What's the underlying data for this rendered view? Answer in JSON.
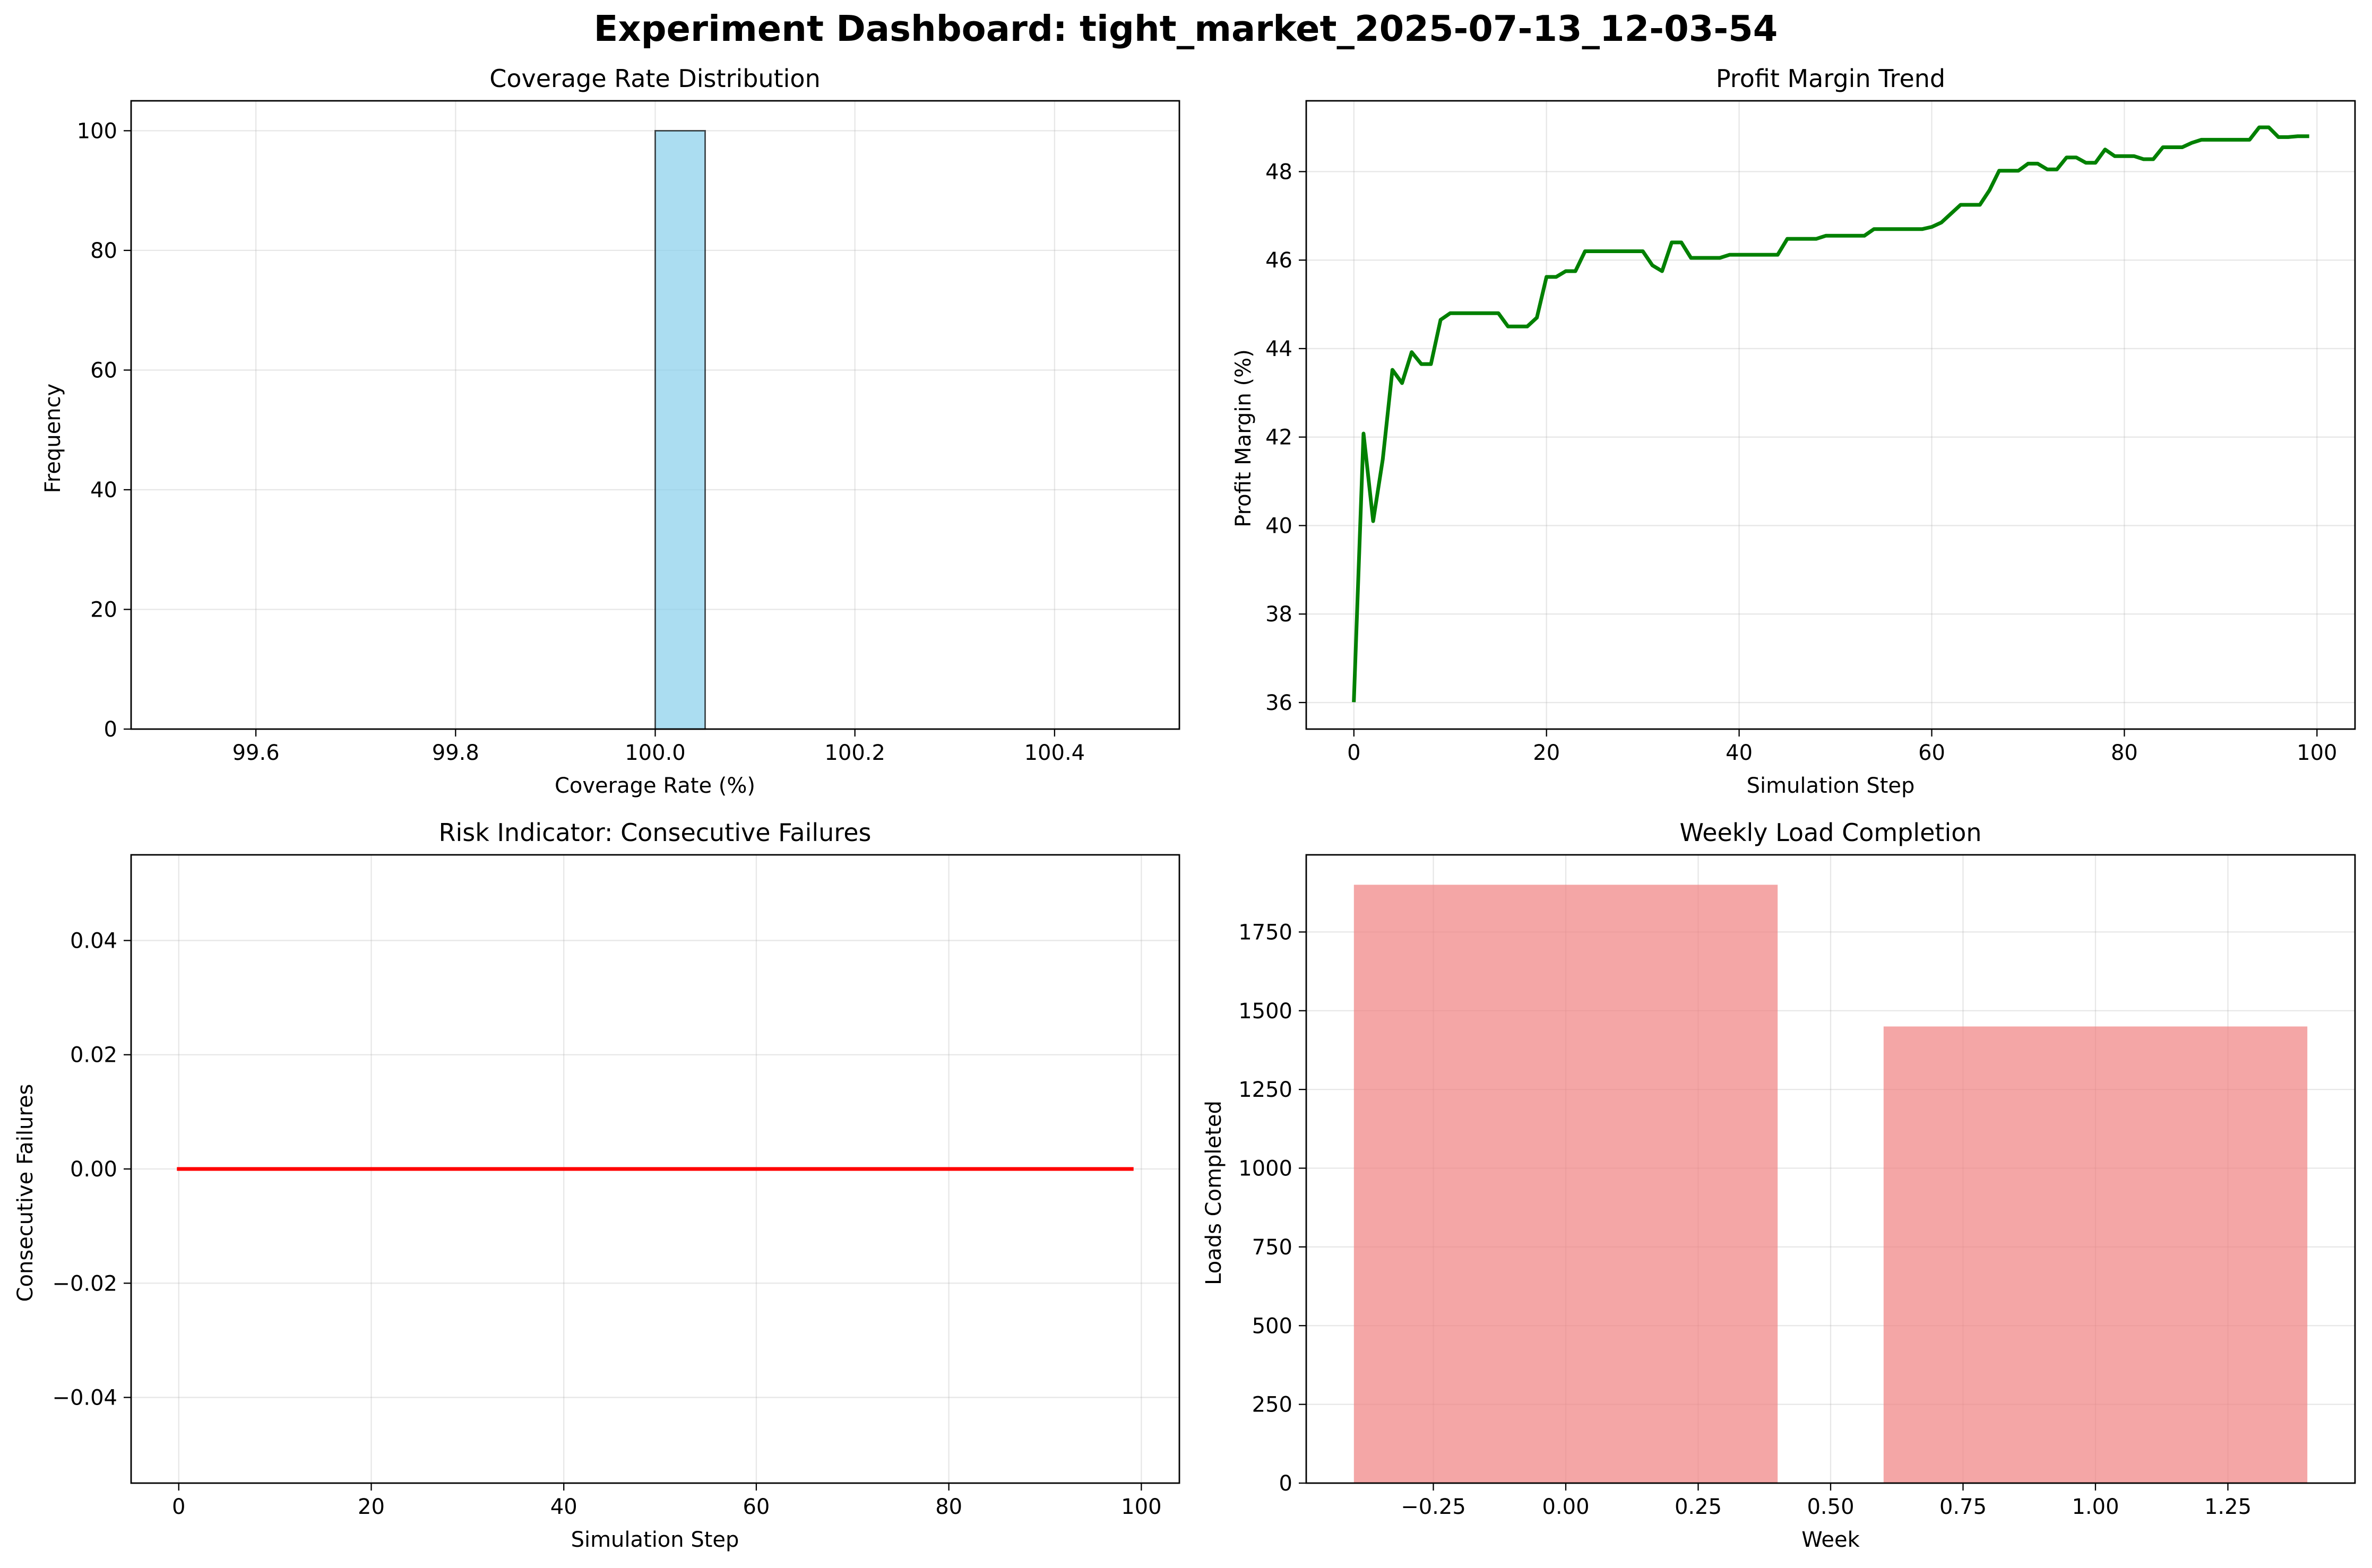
{
  "figure": {
    "title": "Experiment Dashboard: tight_market_2025-07-13_12-03-54"
  },
  "colors": {
    "histogram_fill": "#87ceeb",
    "histogram_edge": "#000000",
    "profit_line": "#008000",
    "risk_line": "#ff0000",
    "weekly_bars": "#f08080",
    "grid": "#b0b0b0"
  },
  "chart_data": [
    {
      "id": "coverage",
      "type": "bar",
      "title": "Coverage Rate Distribution",
      "xlabel": "Coverage Rate (%)",
      "ylabel": "Frequency",
      "xlim": [
        99.475,
        100.525
      ],
      "ylim": [
        0,
        105
      ],
      "grid": true,
      "xticks": [
        99.6,
        99.8,
        100.0,
        100.2,
        100.4
      ],
      "xtick_labels": [
        "99.6",
        "99.8",
        "100.0",
        "100.2",
        "100.4"
      ],
      "yticks": [
        0,
        20,
        40,
        60,
        80,
        100
      ],
      "ytick_labels": [
        "0",
        "20",
        "40",
        "60",
        "80",
        "100"
      ],
      "bin_range": [
        99.5,
        100.5
      ],
      "bin_count": 20,
      "bins": [
        {
          "x0": 100.0,
          "x1": 100.05,
          "count": 100
        }
      ],
      "color": "#87ceeb"
    },
    {
      "id": "profit",
      "type": "line",
      "title": "Profit Margin Trend",
      "xlabel": "Simulation Step",
      "ylabel": "Profit Margin (%)",
      "xlim": [
        -4.95,
        103.95
      ],
      "ylim": [
        35.4,
        49.6
      ],
      "grid": true,
      "xticks": [
        0,
        20,
        40,
        60,
        80,
        100
      ],
      "xtick_labels": [
        "0",
        "20",
        "40",
        "60",
        "80",
        "100"
      ],
      "yticks": [
        36,
        38,
        40,
        42,
        44,
        46,
        48
      ],
      "ytick_labels": [
        "36",
        "38",
        "40",
        "42",
        "44",
        "46",
        "48"
      ],
      "x": [
        0,
        1,
        2,
        3,
        4,
        5,
        6,
        7,
        8,
        9,
        10,
        11,
        12,
        13,
        14,
        15,
        16,
        17,
        18,
        19,
        20,
        21,
        22,
        23,
        24,
        25,
        26,
        27,
        28,
        29,
        30,
        31,
        32,
        33,
        34,
        35,
        36,
        37,
        38,
        39,
        40,
        41,
        42,
        43,
        44,
        45,
        46,
        47,
        48,
        49,
        50,
        51,
        52,
        53,
        54,
        55,
        56,
        57,
        58,
        59,
        60,
        61,
        62,
        63,
        64,
        65,
        66,
        67,
        68,
        69,
        70,
        71,
        72,
        73,
        74,
        75,
        76,
        77,
        78,
        79,
        80,
        81,
        82,
        83,
        84,
        85,
        86,
        87,
        88,
        89,
        90,
        91,
        92,
        93,
        94,
        95,
        96,
        97,
        98,
        99
      ],
      "y": [
        36.05,
        42.08,
        40.1,
        41.5,
        43.52,
        43.22,
        43.92,
        43.65,
        43.65,
        44.65,
        44.8,
        44.8,
        44.8,
        44.8,
        44.8,
        44.8,
        44.5,
        44.5,
        44.5,
        44.7,
        45.62,
        45.62,
        45.75,
        45.75,
        46.2,
        46.2,
        46.2,
        46.2,
        46.2,
        46.2,
        46.2,
        45.88,
        45.75,
        46.4,
        46.4,
        46.05,
        46.05,
        46.05,
        46.05,
        46.12,
        46.12,
        46.12,
        46.12,
        46.12,
        46.12,
        46.48,
        46.48,
        46.48,
        46.48,
        46.55,
        46.55,
        46.55,
        46.55,
        46.55,
        46.7,
        46.7,
        46.7,
        46.7,
        46.7,
        46.7,
        46.75,
        46.85,
        47.05,
        47.25,
        47.25,
        47.25,
        47.58,
        48.02,
        48.02,
        48.02,
        48.18,
        48.18,
        48.05,
        48.05,
        48.32,
        48.32,
        48.2,
        48.2,
        48.5,
        48.35,
        48.35,
        48.35,
        48.28,
        48.28,
        48.55,
        48.55,
        48.55,
        48.65,
        48.72,
        48.72,
        48.72,
        48.72,
        48.72,
        48.72,
        49.0,
        49.0,
        48.78,
        48.78,
        48.8,
        48.8
      ],
      "color": "#008000"
    },
    {
      "id": "risk",
      "type": "line",
      "title": "Risk Indicator: Consecutive Failures",
      "xlabel": "Simulation Step",
      "ylabel": "Consecutive Failures",
      "xlim": [
        -4.95,
        103.95
      ],
      "ylim": [
        -0.055,
        0.055
      ],
      "grid": true,
      "xticks": [
        0,
        20,
        40,
        60,
        80,
        100
      ],
      "xtick_labels": [
        "0",
        "20",
        "40",
        "60",
        "80",
        "100"
      ],
      "yticks": [
        -0.04,
        -0.02,
        0.0,
        0.02,
        0.04
      ],
      "ytick_labels": [
        "−0.04",
        "−0.02",
        "0.00",
        "0.02",
        "0.04"
      ],
      "x": [
        0,
        99
      ],
      "y": [
        0,
        0
      ],
      "color": "#ff0000"
    },
    {
      "id": "weekly",
      "type": "bar",
      "title": "Weekly Load Completion",
      "xlabel": "Week",
      "ylabel": "Loads Completed",
      "xlim": [
        -0.49,
        1.49
      ],
      "ylim": [
        0,
        1995
      ],
      "grid": true,
      "xticks": [
        -0.25,
        0.0,
        0.25,
        0.5,
        0.75,
        1.0,
        1.25
      ],
      "xtick_labels": [
        "−0.25",
        "0.00",
        "0.25",
        "0.50",
        "0.75",
        "1.00",
        "1.25"
      ],
      "yticks": [
        0,
        250,
        500,
        750,
        1000,
        1250,
        1500,
        1750
      ],
      "ytick_labels": [
        "0",
        "250",
        "500",
        "750",
        "1000",
        "1250",
        "1500",
        "1750"
      ],
      "categories": [
        0,
        1
      ],
      "values": [
        1900,
        1450
      ],
      "bar_width": 0.8,
      "color": "#f08080"
    }
  ]
}
